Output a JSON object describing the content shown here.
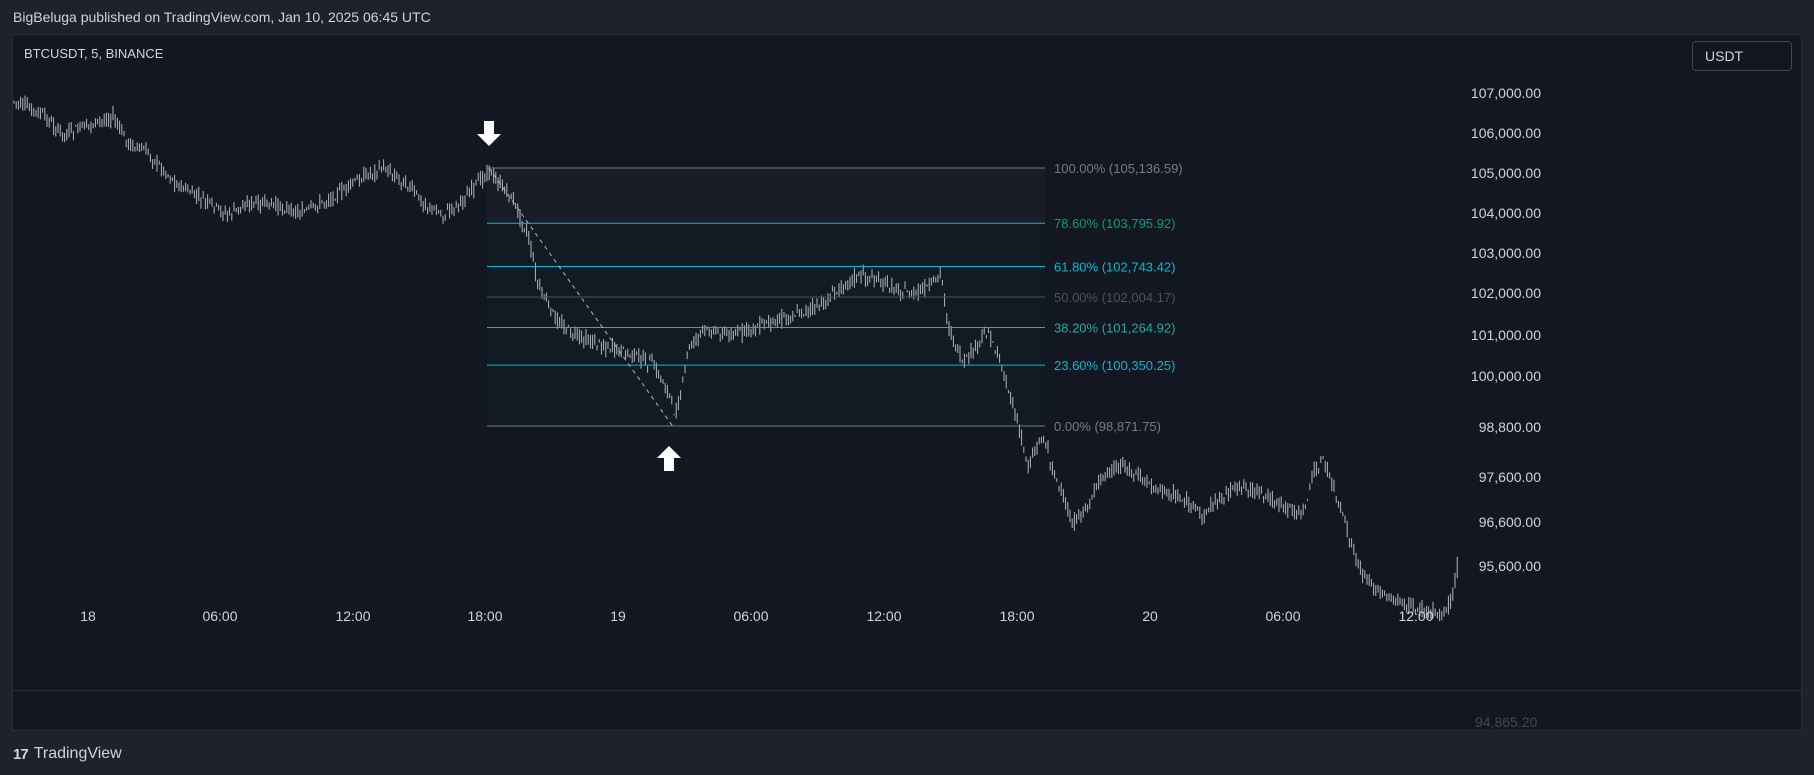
{
  "header": {
    "published_line": "BigBeluga published on TradingView.com, Jan 10, 2025 06:45 UTC"
  },
  "chart": {
    "symbol": "BTCUSDT, 5, BINANCE",
    "currency": "USDT",
    "price_axis_labels": [
      "107,000.00",
      "106,000.00",
      "105,000.00",
      "104,000.00",
      "103,000.00",
      "102,000.00",
      "101,000.00",
      "100,000.00",
      "98,800.00",
      "97,600.00",
      "96,600.00",
      "95,600.00"
    ],
    "last_price_partial": "94,865.20",
    "time_axis_labels": [
      "18",
      "06:00",
      "12:00",
      "18:00",
      "19",
      "06:00",
      "12:00",
      "18:00",
      "20",
      "06:00",
      "12:00"
    ]
  },
  "fibonacci": {
    "levels": [
      {
        "label": "100.00% (105,136.59)",
        "ratio": 1.0,
        "price": 105136.59,
        "color": "#787b86"
      },
      {
        "label": "78.60% (103,795.92)",
        "ratio": 0.786,
        "price": 103795.92,
        "color": "#089981"
      },
      {
        "label": "61.80% (102,743.42)",
        "ratio": 0.618,
        "price": 102743.42,
        "color": "#00bcd4"
      },
      {
        "label": "50.00% (102,004.17)",
        "ratio": 0.5,
        "price": 102004.17,
        "color": "#4c525e"
      },
      {
        "label": "38.20% (101,264.92)",
        "ratio": 0.382,
        "price": 101264.92,
        "color": "#22ab94"
      },
      {
        "label": "23.60% (100,350.25)",
        "ratio": 0.236,
        "price": 100350.25,
        "color": "#00bcd4"
      },
      {
        "label": "0.00% (98,871.75)",
        "ratio": 0.0,
        "price": 98871.75,
        "color": "#787b86"
      }
    ]
  },
  "colors": {
    "background": "#131722",
    "frame": "#1e222d",
    "candles": "#b2b5be",
    "arrow": "#ffffff"
  },
  "footer": {
    "logo_mark": "17",
    "brand": "TradingView"
  }
}
